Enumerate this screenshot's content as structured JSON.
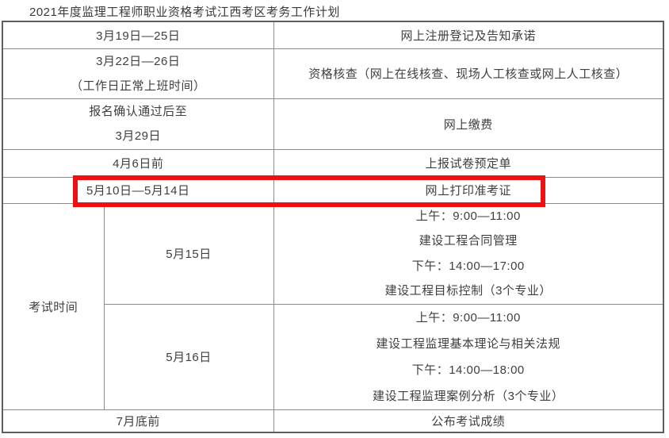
{
  "page": {
    "title": "2021年度监理工程师职业资格考试江西考区考务工作计划"
  },
  "colors": {
    "highlight_red": "#ee1111",
    "text": "#3f3f3f",
    "border": "#8c8c8c"
  },
  "rows": [
    {
      "time": [
        "3月19日—25日"
      ],
      "task": [
        "网上注册登记及告知承诺"
      ]
    },
    {
      "time": [
        "3月22日—26日",
        "（工作日正常上班时间）"
      ],
      "task": [
        "资格核查（网上在线核查、现场人工核查或网上人工核查）"
      ]
    },
    {
      "time": [
        "报名确认通过后至",
        "3月29日"
      ],
      "task": [
        "网上缴费"
      ]
    },
    {
      "time": [
        "4月6日前"
      ],
      "task": [
        "上报试卷预定单"
      ]
    },
    {
      "time": [
        "5月10日—5月14日"
      ],
      "task": [
        "网上打印准考证"
      ],
      "highlighted": true
    }
  ],
  "exam_section": {
    "label": "考试时间",
    "days": [
      {
        "date": "5月15日",
        "schedule": [
          "上午：9:00—11:00",
          "建设工程合同管理",
          "下午：14:00—17:00",
          "建设工程目标控制（3个专业）"
        ]
      },
      {
        "date": "5月16日",
        "schedule": [
          "上午：9:00—11:00",
          "建设工程监理基本理论与相关法规",
          "下午：14:00—18:00",
          "建设工程监理案例分析（3个专业）"
        ]
      }
    ]
  },
  "footer_row": {
    "time": "7月底前",
    "task": "公布考试成绩"
  }
}
